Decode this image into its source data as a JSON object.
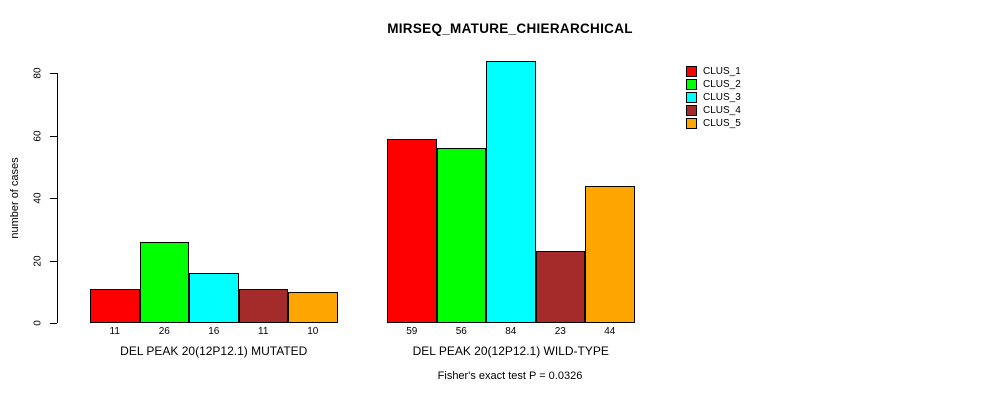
{
  "chart_data": {
    "type": "bar",
    "title": "MIRSEQ_MATURE_CHIERARCHICAL",
    "ylabel": "number of cases",
    "xlabel": "",
    "ylim": [
      0,
      80
    ],
    "yticks": [
      0,
      20,
      40,
      60,
      80
    ],
    "grid": false,
    "legend_position": "top-right",
    "bar_value_labels": true,
    "categories": [
      "DEL PEAK 20(12P12.1) MUTATED",
      "DEL PEAK 20(12P12.1) WILD-TYPE"
    ],
    "series": [
      {
        "name": "CLUS_1",
        "color": "#FF0000",
        "values": [
          11,
          59
        ]
      },
      {
        "name": "CLUS_2",
        "color": "#00FF00",
        "values": [
          26,
          56
        ]
      },
      {
        "name": "CLUS_3",
        "color": "#00FFFF",
        "values": [
          16,
          84
        ]
      },
      {
        "name": "CLUS_4",
        "color": "#A52A2A",
        "values": [
          11,
          23
        ]
      },
      {
        "name": "CLUS_5",
        "color": "#FFA500",
        "values": [
          10,
          44
        ]
      }
    ],
    "annotation": "Fisher's exact test P = 0.0326"
  }
}
